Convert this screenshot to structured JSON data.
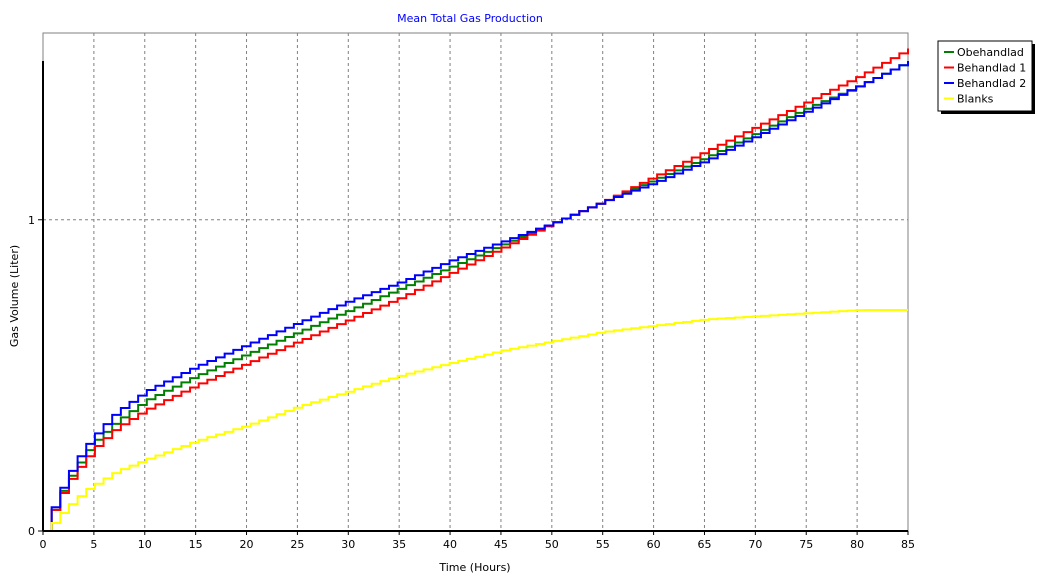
{
  "chart_data": {
    "type": "line",
    "title": "Mean Total Gas Production",
    "xlabel": "Time (Hours)",
    "ylabel": "Gas Volume (Liter)",
    "xlim": [
      0,
      85
    ],
    "ylim": [
      0,
      1.6
    ],
    "x_ticks": [
      "0",
      "5",
      "10",
      "15",
      "20",
      "25",
      "30",
      "35",
      "40",
      "45",
      "50",
      "55",
      "60",
      "65",
      "70",
      "75",
      "80",
      "85"
    ],
    "y_ticks": [
      "0",
      "1"
    ],
    "grid": true,
    "legend_position": "right-top",
    "colors": {
      "title": "#0000ff",
      "grid": "#808080",
      "axis": "#000000"
    },
    "series": [
      {
        "name": "Obehandlad",
        "color": "#008000",
        "x": [
          0,
          1,
          2,
          3,
          4,
          5,
          7,
          10,
          15,
          20,
          25,
          30,
          35,
          40,
          45,
          50,
          55,
          60,
          65,
          70,
          75,
          80,
          85
        ],
        "y": [
          0,
          0.08,
          0.15,
          0.2,
          0.25,
          0.29,
          0.35,
          0.42,
          0.5,
          0.57,
          0.64,
          0.71,
          0.78,
          0.85,
          0.92,
          0.99,
          1.06,
          1.13,
          1.2,
          1.28,
          1.36,
          1.43,
          1.51
        ]
      },
      {
        "name": "Behandlad 1",
        "color": "#ff0000",
        "x": [
          0,
          1,
          2,
          3,
          4,
          5,
          7,
          10,
          15,
          20,
          25,
          30,
          35,
          40,
          45,
          50,
          55,
          60,
          65,
          70,
          75,
          80,
          85
        ],
        "y": [
          0,
          0.08,
          0.14,
          0.19,
          0.23,
          0.27,
          0.33,
          0.39,
          0.47,
          0.54,
          0.61,
          0.68,
          0.75,
          0.83,
          0.91,
          0.99,
          1.06,
          1.14,
          1.22,
          1.3,
          1.38,
          1.46,
          1.55
        ]
      },
      {
        "name": "Behandlad 2",
        "color": "#0000ff",
        "x": [
          0,
          1,
          2,
          3,
          4,
          5,
          7,
          10,
          15,
          20,
          25,
          30,
          35,
          40,
          45,
          50,
          55,
          60,
          65,
          70,
          75,
          80,
          85
        ],
        "y": [
          0,
          0.09,
          0.16,
          0.22,
          0.27,
          0.31,
          0.38,
          0.45,
          0.53,
          0.6,
          0.67,
          0.74,
          0.8,
          0.87,
          0.93,
          0.99,
          1.06,
          1.12,
          1.19,
          1.27,
          1.35,
          1.43,
          1.51
        ]
      },
      {
        "name": "Blanks",
        "color": "#ffff00",
        "x": [
          0,
          1,
          2,
          3,
          4,
          5,
          7,
          10,
          15,
          20,
          25,
          30,
          35,
          40,
          45,
          50,
          55,
          60,
          65,
          70,
          75,
          80,
          85
        ],
        "y": [
          0,
          0.03,
          0.07,
          0.1,
          0.13,
          0.15,
          0.19,
          0.23,
          0.29,
          0.34,
          0.4,
          0.45,
          0.5,
          0.54,
          0.58,
          0.61,
          0.64,
          0.66,
          0.68,
          0.69,
          0.7,
          0.71,
          0.71
        ]
      }
    ]
  }
}
